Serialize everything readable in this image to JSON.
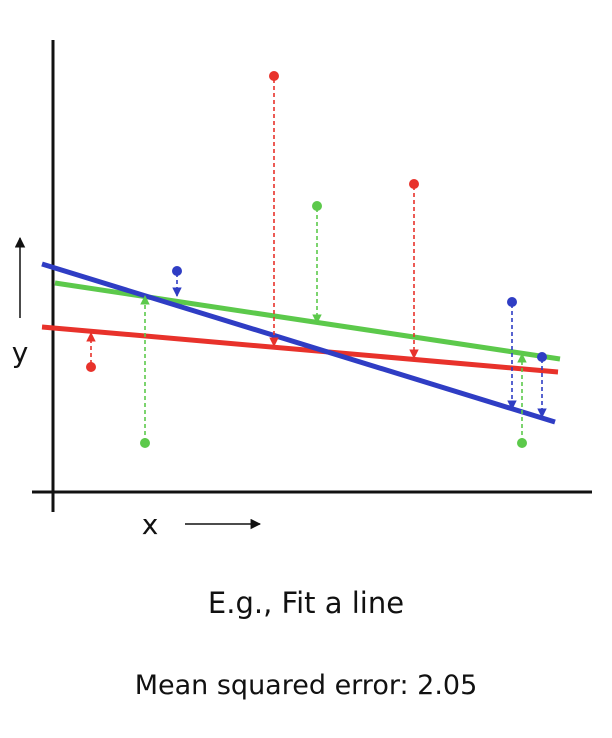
{
  "labels": {
    "x_axis": "x",
    "y_axis": "y"
  },
  "caption": {
    "title": "E.g., Fit a line",
    "mse_label": "Mean squared error:",
    "mse_value": "2.05"
  },
  "colors": {
    "red": "#e8322b",
    "green": "#5cc94b",
    "blue": "#2f3dc4",
    "axis": "#111111"
  },
  "fit_lines": [
    {
      "color_key": "red",
      "name": "red-fit-line"
    },
    {
      "color_key": "green",
      "name": "green-fit-line"
    },
    {
      "color_key": "blue",
      "name": "blue-fit-line"
    }
  ]
}
